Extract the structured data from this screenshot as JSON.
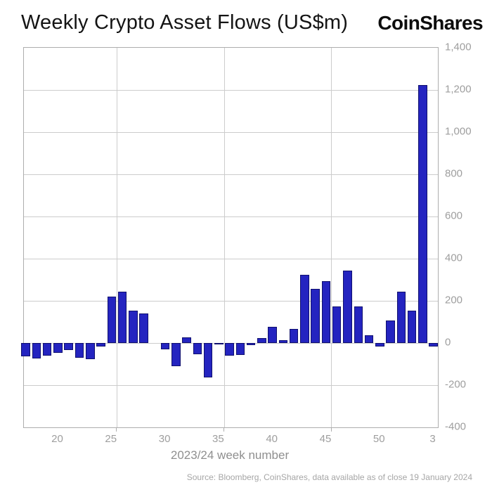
{
  "header": {
    "title": "Weekly Crypto Asset Flows (US$m)",
    "logo": "CoinShares"
  },
  "chart_data": {
    "type": "bar",
    "title": "Weekly Crypto Asset Flows (US$m)",
    "xlabel": "2023/24 week number",
    "ylabel": "",
    "ylim": [
      -400,
      1400
    ],
    "grid": true,
    "legend_position": "none",
    "bar_color": "#2424c0",
    "bar_border_color": "#10106e",
    "categories": [
      "17",
      "18",
      "19",
      "20",
      "21",
      "22",
      "23",
      "24",
      "25",
      "26",
      "27",
      "28",
      "29",
      "30",
      "31",
      "32",
      "33",
      "34",
      "35",
      "36",
      "37",
      "38",
      "39",
      "40",
      "41",
      "42",
      "43",
      "44",
      "45",
      "46",
      "47",
      "48",
      "49",
      "50",
      "51",
      "52",
      "1",
      "2",
      "3"
    ],
    "values": [
      -62,
      -73,
      -60,
      -45,
      -33,
      -70,
      -78,
      -16,
      220,
      245,
      155,
      141,
      0,
      -29,
      -109,
      28,
      -54,
      -162,
      -8,
      -59,
      -57,
      -11,
      24,
      76,
      15,
      68,
      325,
      258,
      292,
      175,
      345,
      175,
      38,
      -15,
      108,
      243,
      152,
      1222,
      -18
    ],
    "yticks": [
      1400,
      1200,
      1000,
      800,
      600,
      400,
      200,
      0,
      -200,
      -400
    ],
    "ytick_labels": [
      "1,400",
      "1,200",
      "1,000",
      "800",
      "600",
      "400",
      "200",
      "0",
      "-200",
      "-400"
    ],
    "xtick_indices": [
      3,
      8,
      13,
      18,
      23,
      28,
      33,
      38
    ],
    "xtick_labels": [
      "20",
      "25",
      "30",
      "35",
      "40",
      "45",
      "50",
      "3"
    ],
    "vgrid_boundary_indices": [
      8.5,
      18.5,
      28.5
    ]
  },
  "footer": {
    "source": "Source: Bloomberg, CoinShares, data available as of close 19 January 2024"
  }
}
